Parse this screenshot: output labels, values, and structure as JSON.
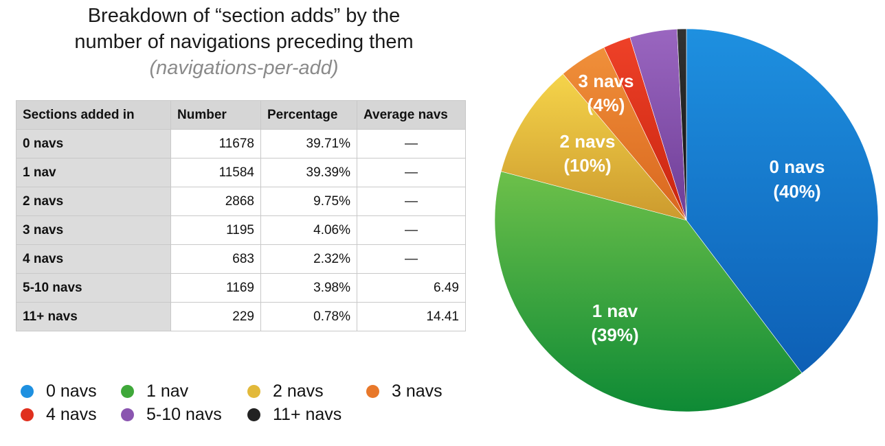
{
  "title_line1": "Breakdown of “section adds” by the",
  "title_line2": "number of navigations preceding them",
  "subtitle": "(navigations-per-add)",
  "table": {
    "headers": [
      "Sections added in",
      "Number",
      "Percentage",
      "Average navs"
    ],
    "rows": [
      [
        "0 navs",
        "11678",
        "39.71%",
        "—"
      ],
      [
        "1 nav",
        "11584",
        "39.39%",
        "—"
      ],
      [
        "2 navs",
        "2868",
        "9.75%",
        "—"
      ],
      [
        "3 navs",
        "1195",
        "4.06%",
        "—"
      ],
      [
        "4 navs",
        "683",
        "2.32%",
        "—"
      ],
      [
        "5-10 navs",
        "1169",
        "3.98%",
        "6.49"
      ],
      [
        "11+ navs",
        "229",
        "0.78%",
        "14.41"
      ]
    ]
  },
  "legend": [
    {
      "label": "0 navs",
      "color": "#1E90E0"
    },
    {
      "label": "1 nav",
      "color": "#3FA83A"
    },
    {
      "label": "2 navs",
      "color": "#E2B93A"
    },
    {
      "label": "3 navs",
      "color": "#E8782A"
    },
    {
      "label": "4 navs",
      "color": "#E0301E"
    },
    {
      "label": "5-10 navs",
      "color": "#8A55B0"
    },
    {
      "label": "11+ navs",
      "color": "#222222"
    }
  ],
  "chart_data": {
    "type": "pie",
    "start": "top, clockwise",
    "slices": [
      {
        "name": "0 navs",
        "value": 39.71,
        "label_line1": "0 navs",
        "label_line2": "(40%)",
        "color": "#1E90E0",
        "color_dark": "#0D5FB5"
      },
      {
        "name": "1 nav",
        "value": 39.39,
        "label_line1": "1 nav",
        "label_line2": "(39%)",
        "color": "#6DC04A",
        "color_dark": "#0E8A35"
      },
      {
        "name": "2 navs",
        "value": 9.75,
        "label_line1": "2 navs",
        "label_line2": "(10%)",
        "color": "#F5D44A",
        "color_dark": "#CC9A2E"
      },
      {
        "name": "3 navs",
        "value": 4.06,
        "label_line1": "3 navs",
        "label_line2": "(4%)",
        "color": "#F0903A",
        "color_dark": "#D9661E"
      },
      {
        "name": "4 navs",
        "value": 2.32,
        "label_line1": "",
        "label_line2": "",
        "color": "#EE4128",
        "color_dark": "#C8240F"
      },
      {
        "name": "5-10 navs",
        "value": 3.98,
        "label_line1": "",
        "label_line2": "",
        "color": "#9A66C0",
        "color_dark": "#6E3D96"
      },
      {
        "name": "11+ navs",
        "value": 0.78,
        "label_line1": "",
        "label_line2": "",
        "color": "#333333",
        "color_dark": "#111111"
      }
    ]
  }
}
